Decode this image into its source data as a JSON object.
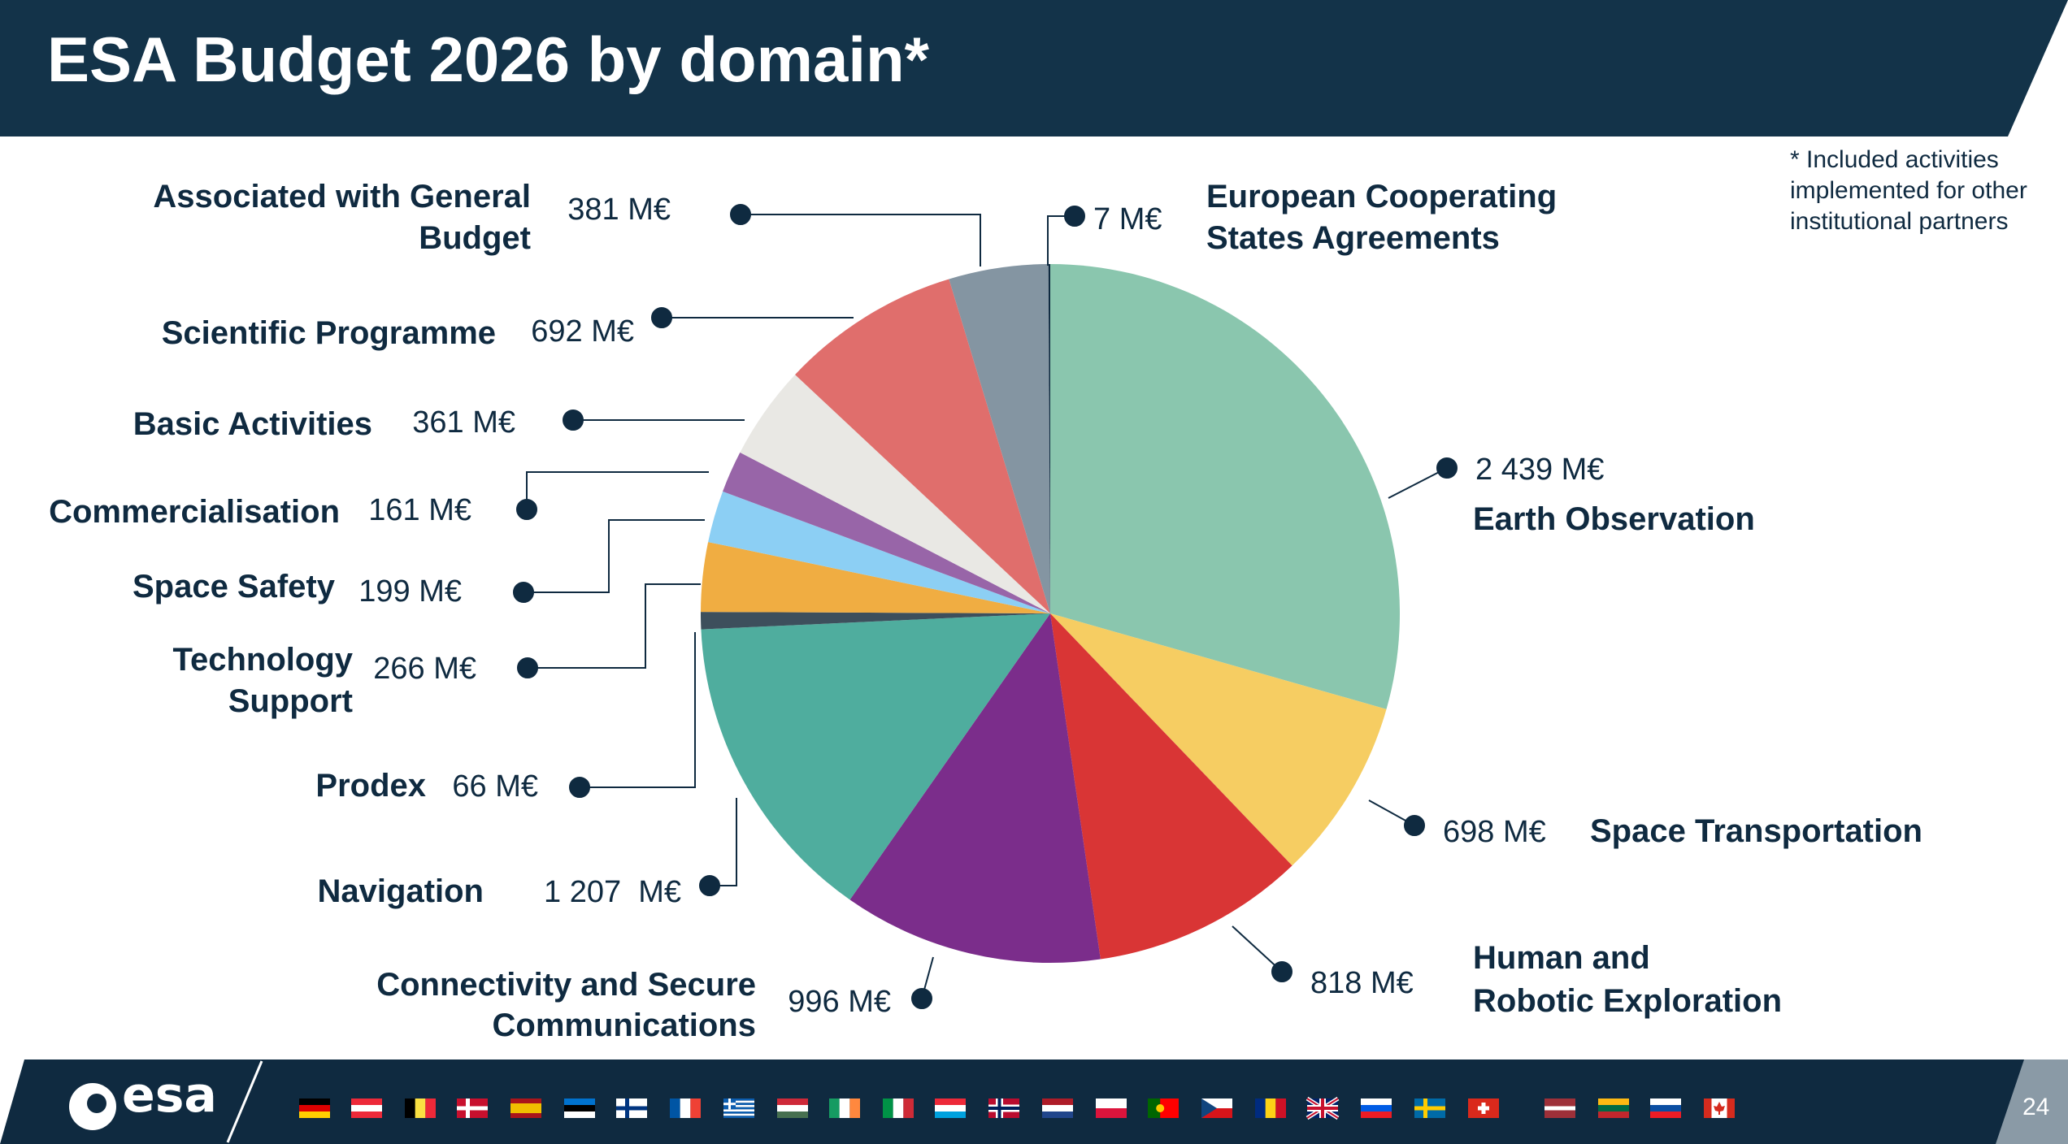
{
  "header": {
    "title": "ESA Budget 2026 by domain*"
  },
  "footnote": "* Included activities implemented for other institutional partners",
  "chart_data": {
    "type": "pie",
    "title": "ESA Budget 2026 by domain*",
    "unit": "M€",
    "start": "12 o'clock",
    "direction": "clockwise",
    "slices": [
      {
        "label": "Earth Observation",
        "value": 2439,
        "value_label": "2 439 M€",
        "color": "#8ac6ae"
      },
      {
        "label": "Space Transportation",
        "value": 698,
        "value_label": "698 M€",
        "color": "#f6cd62"
      },
      {
        "label": "Human and Robotic Exploration",
        "value": 818,
        "value_label": "818 M€",
        "color": "#d93535"
      },
      {
        "label": "Connectivity and Secure Communications",
        "value": 996,
        "value_label": "996 M€",
        "color": "#7b2d8b"
      },
      {
        "label": "Navigation",
        "value": 1207,
        "value_label": "1 207  M€",
        "color": "#4fad9e"
      },
      {
        "label": "Prodex",
        "value": 66,
        "value_label": "66 M€",
        "color": "#3d4f5c"
      },
      {
        "label": "Technology Support",
        "value": 266,
        "value_label": "266 M€",
        "color": "#f0ad42"
      },
      {
        "label": "Space Safety",
        "value": 199,
        "value_label": "199 M€",
        "color": "#8ccff4"
      },
      {
        "label": "Commercialisation",
        "value": 161,
        "value_label": "161 M€",
        "color": "#9865a8"
      },
      {
        "label": "Basic Activities",
        "value": 361,
        "value_label": "361 M€",
        "color": "#e9e8e4"
      },
      {
        "label": "Scientific Programme",
        "value": 692,
        "value_label": "692 M€",
        "color": "#e06e6c"
      },
      {
        "label": "Associated with General Budget",
        "value": 381,
        "value_label": "381 M€",
        "color": "#8495a2"
      },
      {
        "label": "European Cooperating States Agreements",
        "value": 7,
        "value_label": "7 M€",
        "color": "#0f2a40"
      }
    ]
  },
  "footer": {
    "logo_text": "esa",
    "page_number": "24",
    "flags": [
      "Germany",
      "Austria",
      "Belgium",
      "Denmark",
      "Spain",
      "Estonia",
      "Finland",
      "France",
      "Greece",
      "Hungary",
      "Ireland",
      "Italy",
      "Luxembourg",
      "Norway",
      "Netherlands",
      "Poland",
      "Portugal",
      "Czech Republic",
      "Romania",
      "United Kingdom",
      "Slovenia",
      "Sweden",
      "Switzerland",
      "Latvia",
      "Lithuania",
      "Slovakia",
      "Canada"
    ]
  },
  "colors": {
    "navy": "#133349",
    "footer_navy": "#0f2a40",
    "label_text": "#0f2a40",
    "leader_line": "#0f2a40"
  }
}
